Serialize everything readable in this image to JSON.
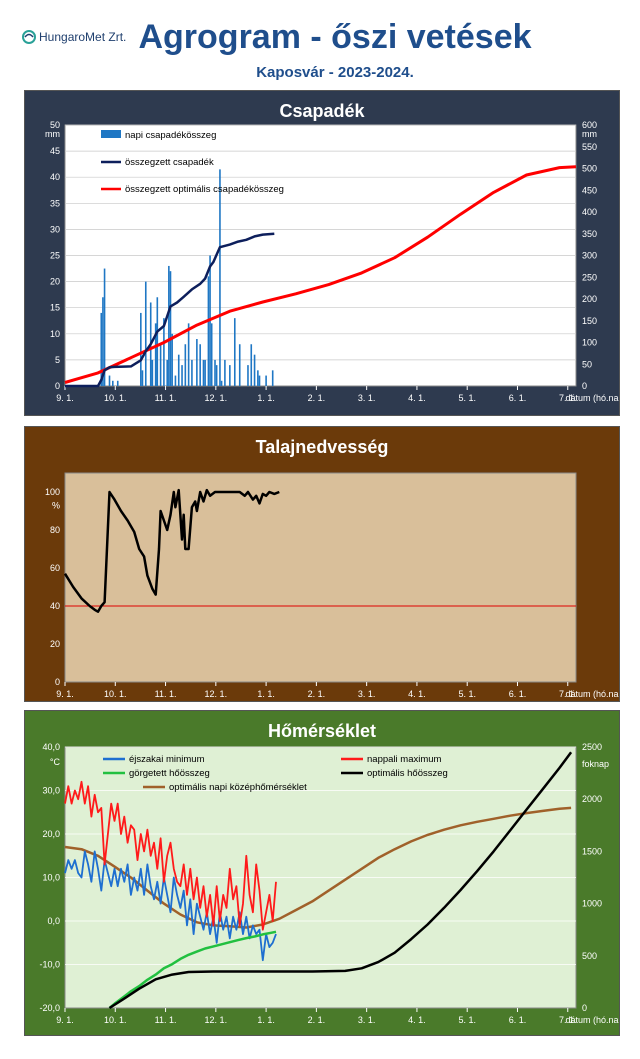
{
  "header": {
    "logo_text": "HungaroMet Zrt.",
    "title": "Agrogram - őszi vetések",
    "subtitle": "Kaposvár  - 2023-2024."
  },
  "x_ticks": [
    "9. 1.",
    "10. 1.",
    "11. 1.",
    "12. 1.",
    "1. 1.",
    "2. 1.",
    "3. 1.",
    "4. 1.",
    "5. 1.",
    "6. 1.",
    "7. 1."
  ],
  "x_axis_label": "dátum (hó.nap)",
  "colors": {
    "panel1_bg": "#2e3a4f",
    "panel2_bg": "#6b3a0a",
    "panel3_bg": "#4a7a2a",
    "plot1_bg": "#ffffff",
    "plot2_bg": "#d9bf9a",
    "plot3_bg": "#dff0d4",
    "napi": "#1f77c4",
    "osszegzett": "#0d1f5c",
    "optimalis": "#ff0000",
    "ejszakai": "#1e6fd0",
    "nappali": "#ff1a1a",
    "gorgetett": "#22c040",
    "opt_hoosszeg": "#000000",
    "opt_kozep": "#a0612a",
    "soil": "#000000",
    "soil_ref": "#e00000"
  },
  "chart_data": [
    {
      "type": "bar",
      "title": "Csapadék",
      "y_unit_left": "mm",
      "y_unit_right": "mm",
      "ylim": [
        0,
        50
      ],
      "y2lim": [
        0,
        600
      ],
      "yticks": [
        0,
        5,
        10,
        15,
        20,
        25,
        30,
        35,
        40,
        45,
        50
      ],
      "y2ticks": [
        0,
        50,
        100,
        150,
        200,
        250,
        300,
        350,
        400,
        450,
        500,
        550,
        600
      ],
      "xlim_days": [
        0,
        310
      ],
      "legend": [
        "napi csapadékösszeg",
        "összegzett csapadék",
        "összegzett optimális csapadékösszeg"
      ],
      "daily_bars": [
        [
          22,
          14
        ],
        [
          23,
          17
        ],
        [
          24,
          22.5
        ],
        [
          27,
          2
        ],
        [
          29,
          1
        ],
        [
          32,
          1
        ],
        [
          46,
          14
        ],
        [
          47,
          3
        ],
        [
          49,
          20
        ],
        [
          52,
          16
        ],
        [
          53,
          5
        ],
        [
          55,
          12
        ],
        [
          56,
          17
        ],
        [
          58,
          8
        ],
        [
          60,
          13
        ],
        [
          62,
          5
        ],
        [
          63,
          23
        ],
        [
          64,
          22
        ],
        [
          65,
          10
        ],
        [
          67,
          2
        ],
        [
          69,
          6
        ],
        [
          71,
          4
        ],
        [
          73,
          8
        ],
        [
          75,
          12
        ],
        [
          77,
          5
        ],
        [
          80,
          9
        ],
        [
          82,
          8
        ],
        [
          84,
          5
        ],
        [
          85,
          5
        ],
        [
          87,
          21
        ],
        [
          88,
          25
        ],
        [
          89,
          12
        ],
        [
          91,
          5
        ],
        [
          92,
          4
        ],
        [
          94,
          41.5
        ],
        [
          95,
          1
        ],
        [
          97,
          5
        ],
        [
          100,
          4
        ],
        [
          103,
          13
        ],
        [
          106,
          8
        ],
        [
          111,
          4
        ],
        [
          113,
          8
        ],
        [
          115,
          6
        ],
        [
          117,
          3
        ],
        [
          118,
          2
        ],
        [
          122,
          2
        ],
        [
          126,
          3
        ]
      ],
      "cumulative": [
        [
          0,
          0
        ],
        [
          20,
          0
        ],
        [
          22,
          14
        ],
        [
          24,
          36
        ],
        [
          27,
          43
        ],
        [
          30,
          44
        ],
        [
          40,
          45
        ],
        [
          46,
          59
        ],
        [
          49,
          80
        ],
        [
          52,
          96
        ],
        [
          56,
          125
        ],
        [
          60,
          138
        ],
        [
          64,
          183
        ],
        [
          68,
          192
        ],
        [
          72,
          205
        ],
        [
          77,
          222
        ],
        [
          82,
          235
        ],
        [
          85,
          247
        ],
        [
          88,
          275
        ],
        [
          90,
          285
        ],
        [
          94,
          319
        ],
        [
          100,
          325
        ],
        [
          105,
          332
        ],
        [
          110,
          336
        ],
        [
          115,
          344
        ],
        [
          120,
          348
        ],
        [
          127,
          350
        ]
      ],
      "optimal_cum": [
        [
          0,
          8
        ],
        [
          20,
          30
        ],
        [
          40,
          65
        ],
        [
          60,
          100
        ],
        [
          80,
          140
        ],
        [
          100,
          172
        ],
        [
          120,
          193
        ],
        [
          140,
          212
        ],
        [
          160,
          233
        ],
        [
          180,
          260
        ],
        [
          200,
          295
        ],
        [
          220,
          342
        ],
        [
          240,
          395
        ],
        [
          260,
          445
        ],
        [
          280,
          485
        ],
        [
          300,
          502
        ],
        [
          310,
          504
        ]
      ]
    },
    {
      "type": "line",
      "title": "Talajnedvesség",
      "y_unit": "%",
      "ylim": [
        0,
        110
      ],
      "yticks": [
        0,
        20,
        40,
        60,
        80,
        100
      ],
      "xlim_days": [
        0,
        310
      ],
      "reference_value": 40,
      "soil_moisture": [
        [
          0,
          57
        ],
        [
          5,
          50
        ],
        [
          10,
          44
        ],
        [
          15,
          40
        ],
        [
          18,
          38
        ],
        [
          20,
          37
        ],
        [
          22,
          40
        ],
        [
          24,
          42
        ],
        [
          27,
          100
        ],
        [
          30,
          96
        ],
        [
          34,
          90
        ],
        [
          38,
          85
        ],
        [
          42,
          79
        ],
        [
          45,
          70
        ],
        [
          48,
          66
        ],
        [
          50,
          56
        ],
        [
          53,
          49
        ],
        [
          55,
          46
        ],
        [
          57,
          70
        ],
        [
          58,
          90
        ],
        [
          60,
          85
        ],
        [
          62,
          80
        ],
        [
          64,
          88
        ],
        [
          66,
          100
        ],
        [
          67,
          92
        ],
        [
          69,
          101
        ],
        [
          71,
          75
        ],
        [
          72,
          88
        ],
        [
          73,
          70
        ],
        [
          75,
          70
        ],
        [
          77,
          92
        ],
        [
          79,
          95
        ],
        [
          80,
          90
        ],
        [
          82,
          100
        ],
        [
          84,
          95
        ],
        [
          86,
          101
        ],
        [
          88,
          98
        ],
        [
          91,
          100
        ],
        [
          95,
          100
        ],
        [
          100,
          100
        ],
        [
          106,
          100
        ],
        [
          109,
          98
        ],
        [
          111,
          100
        ],
        [
          114,
          96
        ],
        [
          116,
          98
        ],
        [
          118,
          94
        ],
        [
          120,
          99
        ],
        [
          122,
          98
        ],
        [
          124,
          100
        ],
        [
          127,
          99
        ],
        [
          130,
          100
        ]
      ]
    },
    {
      "type": "line",
      "title": "Hőmérséklet",
      "y_unit_left": "°C",
      "y_unit_right": "foknap",
      "ylim": [
        -20,
        40
      ],
      "y2lim": [
        0,
        2500
      ],
      "yticks": [
        -20,
        -10,
        0,
        10,
        20,
        30,
        40
      ],
      "y2ticks": [
        0,
        500,
        1000,
        1500,
        2000,
        2500
      ],
      "xlim_days": [
        0,
        310
      ],
      "legend": [
        "éjszakai minimum",
        "nappali maximum",
        "görgetett hőösszeg",
        "optimális hőösszeg",
        "optimális napi középhőmérséklet"
      ],
      "night_min": [
        [
          0,
          11
        ],
        [
          2,
          14
        ],
        [
          4,
          12
        ],
        [
          6,
          14
        ],
        [
          8,
          11
        ],
        [
          10,
          10
        ],
        [
          12,
          16
        ],
        [
          14,
          13
        ],
        [
          16,
          9
        ],
        [
          18,
          16
        ],
        [
          20,
          12
        ],
        [
          22,
          7
        ],
        [
          24,
          14
        ],
        [
          26,
          11
        ],
        [
          28,
          8
        ],
        [
          30,
          12
        ],
        [
          32,
          8
        ],
        [
          34,
          12
        ],
        [
          36,
          9
        ],
        [
          38,
          13
        ],
        [
          40,
          6
        ],
        [
          42,
          10
        ],
        [
          44,
          7
        ],
        [
          46,
          12
        ],
        [
          48,
          6
        ],
        [
          50,
          13
        ],
        [
          52,
          8
        ],
        [
          54,
          5
        ],
        [
          56,
          9
        ],
        [
          58,
          4
        ],
        [
          60,
          10
        ],
        [
          62,
          6
        ],
        [
          64,
          2
        ],
        [
          66,
          10
        ],
        [
          68,
          6
        ],
        [
          70,
          3
        ],
        [
          72,
          7
        ],
        [
          74,
          -1
        ],
        [
          76,
          5
        ],
        [
          78,
          -3
        ],
        [
          80,
          4
        ],
        [
          82,
          1
        ],
        [
          84,
          -2
        ],
        [
          86,
          2
        ],
        [
          88,
          -3
        ],
        [
          90,
          1
        ],
        [
          92,
          -5
        ],
        [
          94,
          2
        ],
        [
          96,
          -2
        ],
        [
          98,
          1
        ],
        [
          100,
          -4
        ],
        [
          102,
          1
        ],
        [
          104,
          -2
        ],
        [
          106,
          2
        ],
        [
          108,
          -3
        ],
        [
          110,
          1
        ],
        [
          112,
          -4
        ],
        [
          114,
          -1
        ],
        [
          116,
          -3
        ],
        [
          118,
          -2
        ],
        [
          120,
          -9
        ],
        [
          122,
          -3
        ],
        [
          124,
          -6
        ],
        [
          126,
          -5
        ],
        [
          128,
          -3
        ]
      ],
      "day_max": [
        [
          0,
          27
        ],
        [
          2,
          31
        ],
        [
          4,
          27
        ],
        [
          6,
          30
        ],
        [
          8,
          28
        ],
        [
          10,
          32
        ],
        [
          12,
          27
        ],
        [
          14,
          31
        ],
        [
          16,
          24
        ],
        [
          18,
          29
        ],
        [
          20,
          25
        ],
        [
          22,
          26
        ],
        [
          24,
          13
        ],
        [
          26,
          20
        ],
        [
          28,
          27
        ],
        [
          30,
          23
        ],
        [
          32,
          27
        ],
        [
          34,
          20
        ],
        [
          36,
          24
        ],
        [
          38,
          18
        ],
        [
          40,
          22
        ],
        [
          42,
          21
        ],
        [
          44,
          14
        ],
        [
          46,
          20
        ],
        [
          48,
          16
        ],
        [
          50,
          21
        ],
        [
          52,
          15
        ],
        [
          54,
          18
        ],
        [
          56,
          12
        ],
        [
          58,
          19
        ],
        [
          60,
          9
        ],
        [
          62,
          15
        ],
        [
          64,
          18
        ],
        [
          66,
          12
        ],
        [
          68,
          9
        ],
        [
          70,
          8
        ],
        [
          72,
          13
        ],
        [
          74,
          6
        ],
        [
          76,
          12
        ],
        [
          78,
          5
        ],
        [
          80,
          10
        ],
        [
          82,
          3
        ],
        [
          84,
          8
        ],
        [
          86,
          1
        ],
        [
          88,
          6
        ],
        [
          90,
          -1
        ],
        [
          92,
          8
        ],
        [
          94,
          0
        ],
        [
          96,
          6
        ],
        [
          98,
          3
        ],
        [
          100,
          12
        ],
        [
          102,
          5
        ],
        [
          104,
          8
        ],
        [
          106,
          -1
        ],
        [
          108,
          4
        ],
        [
          110,
          15
        ],
        [
          112,
          6
        ],
        [
          114,
          2
        ],
        [
          116,
          13
        ],
        [
          118,
          7
        ],
        [
          120,
          -2
        ],
        [
          122,
          2
        ],
        [
          124,
          6
        ],
        [
          126,
          0
        ],
        [
          128,
          9
        ]
      ],
      "rolling_sum": [
        [
          27,
          0
        ],
        [
          30,
          40
        ],
        [
          35,
          100
        ],
        [
          40,
          160
        ],
        [
          45,
          210
        ],
        [
          50,
          270
        ],
        [
          55,
          320
        ],
        [
          60,
          380
        ],
        [
          65,
          420
        ],
        [
          70,
          470
        ],
        [
          75,
          510
        ],
        [
          80,
          540
        ],
        [
          85,
          570
        ],
        [
          90,
          590
        ],
        [
          95,
          610
        ],
        [
          100,
          630
        ],
        [
          105,
          650
        ],
        [
          110,
          670
        ],
        [
          115,
          685
        ],
        [
          120,
          705
        ],
        [
          125,
          720
        ],
        [
          128,
          730
        ]
      ],
      "optimal_sum": [
        [
          27,
          0
        ],
        [
          35,
          80
        ],
        [
          45,
          185
        ],
        [
          55,
          275
        ],
        [
          65,
          320
        ],
        [
          75,
          345
        ],
        [
          90,
          350
        ],
        [
          110,
          350
        ],
        [
          130,
          350
        ],
        [
          150,
          350
        ],
        [
          170,
          355
        ],
        [
          180,
          380
        ],
        [
          190,
          440
        ],
        [
          200,
          530
        ],
        [
          210,
          660
        ],
        [
          220,
          800
        ],
        [
          230,
          960
        ],
        [
          240,
          1130
        ],
        [
          250,
          1310
        ],
        [
          260,
          1500
        ],
        [
          270,
          1700
        ],
        [
          280,
          1900
        ],
        [
          290,
          2100
        ],
        [
          300,
          2300
        ],
        [
          307,
          2450
        ]
      ],
      "optimal_mean": [
        [
          0,
          17
        ],
        [
          10,
          16.5
        ],
        [
          20,
          15
        ],
        [
          30,
          12.5
        ],
        [
          40,
          10
        ],
        [
          50,
          7
        ],
        [
          60,
          4
        ],
        [
          70,
          1.5
        ],
        [
          80,
          -0.3
        ],
        [
          90,
          -1
        ],
        [
          100,
          -1.2
        ],
        [
          110,
          -1.5
        ],
        [
          120,
          -0.8
        ],
        [
          130,
          0.5
        ],
        [
          140,
          2.5
        ],
        [
          150,
          4.5
        ],
        [
          160,
          7
        ],
        [
          170,
          9.5
        ],
        [
          180,
          12
        ],
        [
          190,
          14.5
        ],
        [
          200,
          16.5
        ],
        [
          210,
          18.3
        ],
        [
          220,
          19.8
        ],
        [
          230,
          21
        ],
        [
          240,
          22
        ],
        [
          250,
          22.8
        ],
        [
          260,
          23.5
        ],
        [
          270,
          24.2
        ],
        [
          280,
          24.8
        ],
        [
          290,
          25.3
        ],
        [
          300,
          25.8
        ],
        [
          307,
          26
        ]
      ]
    }
  ]
}
